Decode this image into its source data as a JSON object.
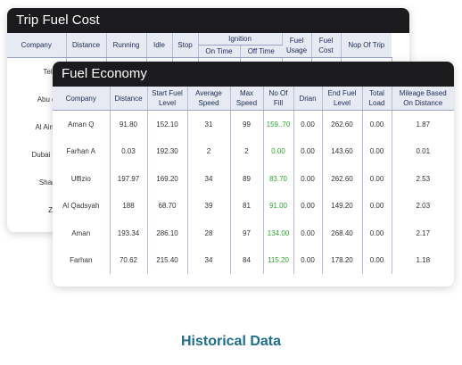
{
  "trip_fuel_cost": {
    "title": "Trip Fuel Cost",
    "headers": {
      "company": "Company",
      "distance": "Distance",
      "running": "Running",
      "idle": "Idle",
      "stop": "Stop",
      "ignition": "Ignition",
      "on_time": "On Time",
      "off_time": "Off Time",
      "fuel_usage": "Fuel Usage",
      "fuel_cost": "Fuel Cost",
      "nop_of_trip": "Nop Of Trip"
    },
    "rows": [
      "Teleco",
      "Abu dha",
      "Al Ain Ve",
      "Dubai veh",
      "Sharjah",
      "Zajal"
    ]
  },
  "fuel_economy": {
    "title": "Fuel Economy",
    "headers": [
      "Company",
      "Distance",
      "Start Fuel Level",
      "Average Speed",
      "Max Speed",
      "No Of Fill",
      "Drian",
      "End Fuel Level",
      "Total Load",
      "Mileage Based On Distance"
    ],
    "rows": [
      [
        "Aman Q",
        "91.80",
        "152.10",
        "31",
        "99",
        "159..70",
        "0.00",
        "262.60",
        "0.00",
        "1.87"
      ],
      [
        "Farhan A",
        "0.03",
        "192.30",
        "2",
        "2",
        "0.00",
        "0.00",
        "143.60",
        "0.00",
        "0.01"
      ],
      [
        "Uffizio",
        "197.97",
        "169.20",
        "34",
        "89",
        "83.70",
        "0.00",
        "262.60",
        "0.00",
        "2.53"
      ],
      [
        "Al Qadsyah",
        "188",
        "68.70",
        "39",
        "81",
        "91.00",
        "0.00",
        "149.20",
        "0.00",
        "2.03"
      ],
      [
        "Aman",
        "193.34",
        "286.10",
        "28",
        "97",
        "134.00",
        "0.00",
        "268.40",
        "0.00",
        "2.17"
      ],
      [
        "Farhan",
        "70.62",
        "215.40",
        "34",
        "84",
        "115.20",
        "0.00",
        "178.20",
        "0.00",
        "1.18"
      ]
    ]
  },
  "footer": {
    "label": "Historical Data"
  },
  "colors": {
    "title_bar": "#1b1b1d",
    "header_bg": "#e7eaf3",
    "fill_value": "#2fa52f",
    "footer_text": "#1f6e8c"
  }
}
